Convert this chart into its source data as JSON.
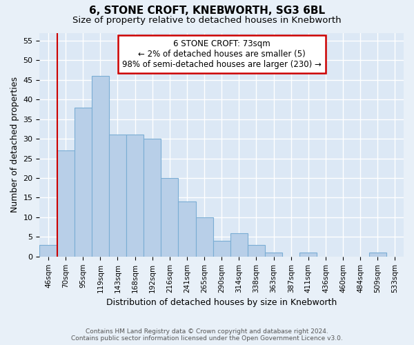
{
  "title": "6, STONE CROFT, KNEBWORTH, SG3 6BL",
  "subtitle": "Size of property relative to detached houses in Knebworth",
  "xlabel": "Distribution of detached houses by size in Knebworth",
  "ylabel": "Number of detached properties",
  "footer_line1": "Contains HM Land Registry data © Crown copyright and database right 2024.",
  "footer_line2": "Contains public sector information licensed under the Open Government Licence v3.0.",
  "bar_labels": [
    "46sqm",
    "70sqm",
    "95sqm",
    "119sqm",
    "143sqm",
    "168sqm",
    "192sqm",
    "216sqm",
    "241sqm",
    "265sqm",
    "290sqm",
    "314sqm",
    "338sqm",
    "363sqm",
    "387sqm",
    "411sqm",
    "436sqm",
    "460sqm",
    "484sqm",
    "509sqm",
    "533sqm"
  ],
  "bar_values": [
    3,
    27,
    38,
    46,
    31,
    31,
    30,
    20,
    14,
    10,
    4,
    6,
    3,
    1,
    0,
    1,
    0,
    0,
    0,
    1,
    0
  ],
  "bar_color": "#b8cfe8",
  "bar_edge_color": "#7aadd4",
  "annotation_text": "6 STONE CROFT: 73sqm\n← 2% of detached houses are smaller (5)\n98% of semi-detached houses are larger (230) →",
  "annotation_box_color": "#cc0000",
  "vline_x": 0.5,
  "vline_color": "#cc0000",
  "ylim": [
    0,
    57
  ],
  "yticks": [
    0,
    5,
    10,
    15,
    20,
    25,
    30,
    35,
    40,
    45,
    50,
    55
  ],
  "bg_color": "#e8f0f8",
  "plot_bg_color": "#dce8f5",
  "title_fontsize": 11,
  "subtitle_fontsize": 9.5,
  "axis_label_fontsize": 9,
  "tick_fontsize": 8,
  "grid_color": "#ffffff"
}
